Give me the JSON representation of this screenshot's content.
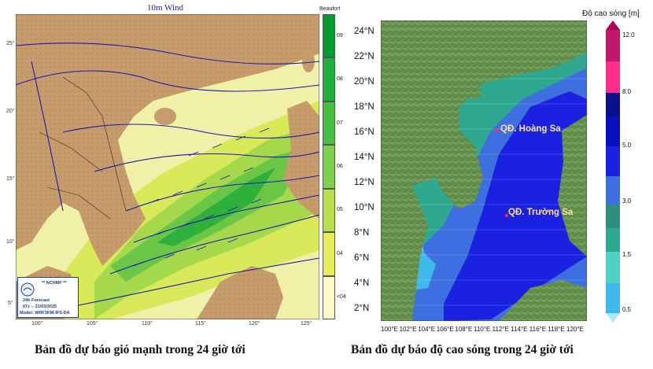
{
  "left": {
    "title": "10m Wind",
    "legend_title": "Beaufort",
    "legend_ticks": [
      "09",
      "08",
      "07",
      "06",
      "05",
      "04",
      "<04"
    ],
    "lat_ticks": [
      "25°",
      "20°",
      "15°",
      "10°",
      "5°"
    ],
    "lon_ticks": [
      "100°",
      "105°",
      "110°",
      "115°",
      "120°",
      "125°"
    ],
    "logo": {
      "org": "** NCHMF **",
      "line1": "24h Forecast",
      "line2": "07z -- 21/03/2025",
      "line3": "Model: WRF3KM-IFS-DA"
    },
    "caption": "Bản đồ dự báo gió mạnh trong 24 giờ tới"
  },
  "right": {
    "lat_ticks": [
      "24°N",
      "22°N",
      "20°N",
      "18°N",
      "16°N",
      "14°N",
      "12°N",
      "10°N",
      "8°N",
      "6°N",
      "4°N",
      "2°N"
    ],
    "lon_ticks": [
      "100°E",
      "102°E",
      "104°E",
      "106°E",
      "108°E",
      "110°E",
      "112°E",
      "114°E",
      "116°E",
      "118°E",
      "120°E"
    ],
    "legend_title": "Độ cao sóng [m]",
    "legend_ticks": [
      "12.0",
      "8.0",
      "5.0",
      "3.0",
      "1.5",
      "0.5"
    ],
    "places": [
      "QĐ. Hoàng Sa",
      "QĐ. Trường Sa"
    ],
    "caption": "Bản đồ dự báo độ cao sóng trong 24 giờ tới"
  },
  "colors": {
    "beaufort_scale": [
      "#009a2e",
      "#1db03a",
      "#46c043",
      "#7ed04c",
      "#b8e04d",
      "#e6ee58",
      "#fffbc8"
    ],
    "wave_scale": [
      "#b0005a",
      "#ff2d8a",
      "#0a0f8a",
      "#1b21e0",
      "#3e6fe0",
      "#2ea88f",
      "#4fd0c0",
      "#3fb9ec"
    ],
    "isobar": "#1a1ab0",
    "land_left": "#c9a070",
    "land_right": "#5e8c4a"
  }
}
